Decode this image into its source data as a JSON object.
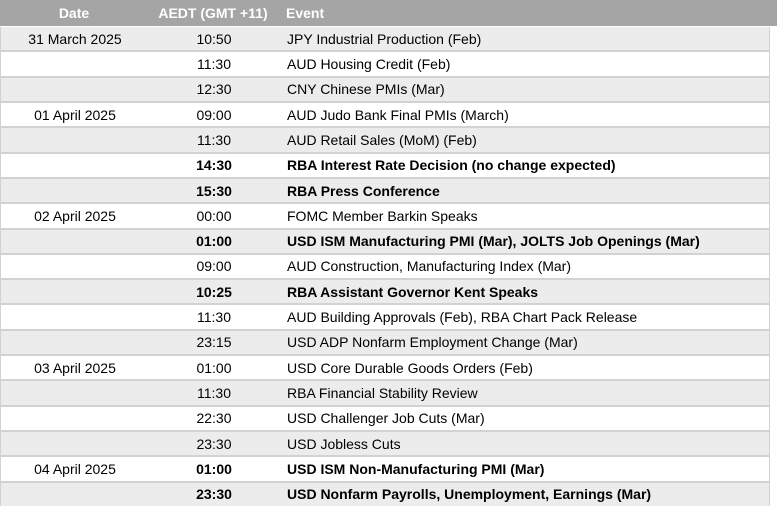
{
  "table": {
    "title": "economic-calendar",
    "columns": [
      "Date",
      "AEDT (GMT +11)",
      "Event"
    ],
    "rows": [
      {
        "date": "31 March 2025",
        "time": "10:50",
        "event": "JPY Industrial Production (Feb)",
        "bold": false
      },
      {
        "date": "",
        "time": "11:30",
        "event": "AUD Housing Credit (Feb)",
        "bold": false
      },
      {
        "date": "",
        "time": "12:30",
        "event": "CNY Chinese PMIs (Mar)",
        "bold": false
      },
      {
        "date": "01 April 2025",
        "time": "09:00",
        "event": "AUD Judo Bank Final PMIs (March)",
        "bold": false
      },
      {
        "date": "",
        "time": "11:30",
        "event": "AUD Retail Sales (MoM) (Feb)",
        "bold": false
      },
      {
        "date": "",
        "time": "14:30",
        "event": "RBA Interest Rate Decision (no change expected)",
        "bold": true
      },
      {
        "date": "",
        "time": "15:30",
        "event": "RBA Press Conference",
        "bold": true
      },
      {
        "date": "02 April 2025",
        "time": "00:00",
        "event": "FOMC Member Barkin Speaks",
        "bold": false
      },
      {
        "date": "",
        "time": "01:00",
        "event": "USD ISM Manufacturing PMI (Mar), JOLTS Job Openings (Mar)",
        "bold": true
      },
      {
        "date": "",
        "time": "09:00",
        "event": "AUD Construction, Manufacturing Index (Mar)",
        "bold": false
      },
      {
        "date": "",
        "time": "10:25",
        "event": "RBA Assistant Governor Kent Speaks",
        "bold": true
      },
      {
        "date": "",
        "time": "11:30",
        "event": "AUD Building Approvals (Feb), RBA Chart Pack Release",
        "bold": false
      },
      {
        "date": "",
        "time": "23:15",
        "event": "USD ADP Nonfarm Employment Change (Mar)",
        "bold": false
      },
      {
        "date": "03 April 2025",
        "time": "01:00",
        "event": "USD Core Durable Goods Orders (Feb)",
        "bold": false
      },
      {
        "date": "",
        "time": "11:30",
        "event": "RBA Financial Stability Review",
        "bold": false
      },
      {
        "date": "",
        "time": "22:30",
        "event": "USD Challenger Job Cuts (Mar)",
        "bold": false
      },
      {
        "date": "",
        "time": "23:30",
        "event": "USD Jobless Cuts",
        "bold": false
      },
      {
        "date": "04 April 2025",
        "time": "01:00",
        "event": "USD ISM Non-Manufacturing PMI (Mar)",
        "bold": true
      },
      {
        "date": "",
        "time": "23:30",
        "event": "USD Nonfarm Payrolls, Unemployment, Earnings (Mar)",
        "bold": true
      }
    ],
    "colors": {
      "header_bg": "#a5a5a5",
      "header_text": "#ffffff",
      "band_bg": "#ececec",
      "row_bg": "#ffffff",
      "separator": "#d2d2d2",
      "text": "#000000"
    }
  }
}
